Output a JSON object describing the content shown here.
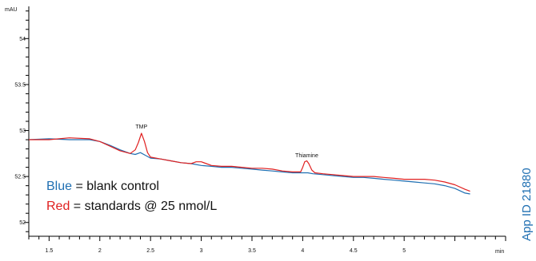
{
  "chart_data": {
    "type": "line",
    "ylabel": "mAU",
    "xlabel": "min",
    "xlim": [
      1.3,
      6.0
    ],
    "ylim": [
      51.85,
      54.35
    ],
    "x_ticks": [
      "1.5",
      "2",
      "2.5",
      "3",
      "3.5",
      "4",
      "4.5",
      "5"
    ],
    "x_tick_values": [
      1.5,
      2.0,
      2.5,
      3.0,
      3.5,
      4.0,
      4.5,
      5.0
    ],
    "y_ticks": [
      "52",
      "52.5",
      "53",
      "53.5",
      "54"
    ],
    "y_tick_values": [
      52.0,
      52.5,
      53.0,
      53.5,
      54.0
    ],
    "series": [
      {
        "color": "#1f6fb2",
        "x": [
          1.3,
          1.5,
          1.7,
          1.9,
          2.0,
          2.1,
          2.2,
          2.3,
          2.35,
          2.4,
          2.45,
          2.5,
          2.6,
          2.7,
          2.8,
          2.9,
          3.0,
          3.1,
          3.2,
          3.3,
          3.4,
          3.5,
          3.6,
          3.7,
          3.8,
          3.9,
          4.0,
          4.05,
          4.1,
          4.2,
          4.3,
          4.4,
          4.5,
          4.6,
          4.7,
          4.8,
          4.9,
          5.0,
          5.1,
          5.2,
          5.3,
          5.4,
          5.5,
          5.6,
          5.65
        ],
        "y": [
          52.9,
          52.91,
          52.9,
          52.9,
          52.88,
          52.84,
          52.79,
          52.75,
          52.74,
          52.76,
          52.73,
          52.7,
          52.69,
          52.67,
          52.65,
          52.64,
          52.62,
          52.61,
          52.6,
          52.6,
          52.59,
          52.58,
          52.57,
          52.56,
          52.55,
          52.54,
          52.54,
          52.54,
          52.53,
          52.52,
          52.51,
          52.5,
          52.49,
          52.49,
          52.48,
          52.47,
          52.46,
          52.45,
          52.44,
          52.43,
          52.42,
          52.4,
          52.37,
          52.32,
          52.31
        ]
      },
      {
        "color": "#e02020",
        "x": [
          1.3,
          1.5,
          1.7,
          1.9,
          2.0,
          2.1,
          2.2,
          2.3,
          2.35,
          2.38,
          2.41,
          2.44,
          2.47,
          2.5,
          2.6,
          2.7,
          2.8,
          2.9,
          2.95,
          3.0,
          3.05,
          3.1,
          3.2,
          3.3,
          3.4,
          3.5,
          3.6,
          3.7,
          3.8,
          3.9,
          3.98,
          4.0,
          4.02,
          4.04,
          4.06,
          4.09,
          4.12,
          4.2,
          4.3,
          4.4,
          4.5,
          4.6,
          4.7,
          4.8,
          4.9,
          5.0,
          5.1,
          5.2,
          5.3,
          5.4,
          5.5,
          5.6,
          5.65
        ],
        "y": [
          52.9,
          52.9,
          52.92,
          52.91,
          52.88,
          52.83,
          52.78,
          52.75,
          52.79,
          52.87,
          52.97,
          52.88,
          52.76,
          52.71,
          52.69,
          52.67,
          52.65,
          52.64,
          52.66,
          52.66,
          52.64,
          52.62,
          52.61,
          52.61,
          52.6,
          52.59,
          52.59,
          52.58,
          52.56,
          52.55,
          52.55,
          52.6,
          52.66,
          52.67,
          52.64,
          52.57,
          52.54,
          52.53,
          52.52,
          52.51,
          52.5,
          52.5,
          52.5,
          52.49,
          52.48,
          52.47,
          52.47,
          52.47,
          52.46,
          52.44,
          52.41,
          52.36,
          52.34
        ]
      }
    ],
    "annotations": [
      {
        "text": "TMP",
        "x": 2.41,
        "y": 53.02
      },
      {
        "text": "Thiamine",
        "x": 4.04,
        "y": 52.71
      }
    ],
    "legend": [
      {
        "word": "Blue",
        "rest": " = blank control",
        "color": "#1f6fb2"
      },
      {
        "word": "Red",
        "rest": " = standards @ 25 nmol/L",
        "color": "#e02020"
      }
    ],
    "side_label": "App ID 21880",
    "side_label_color": "#1f6fb2",
    "grid": false
  }
}
